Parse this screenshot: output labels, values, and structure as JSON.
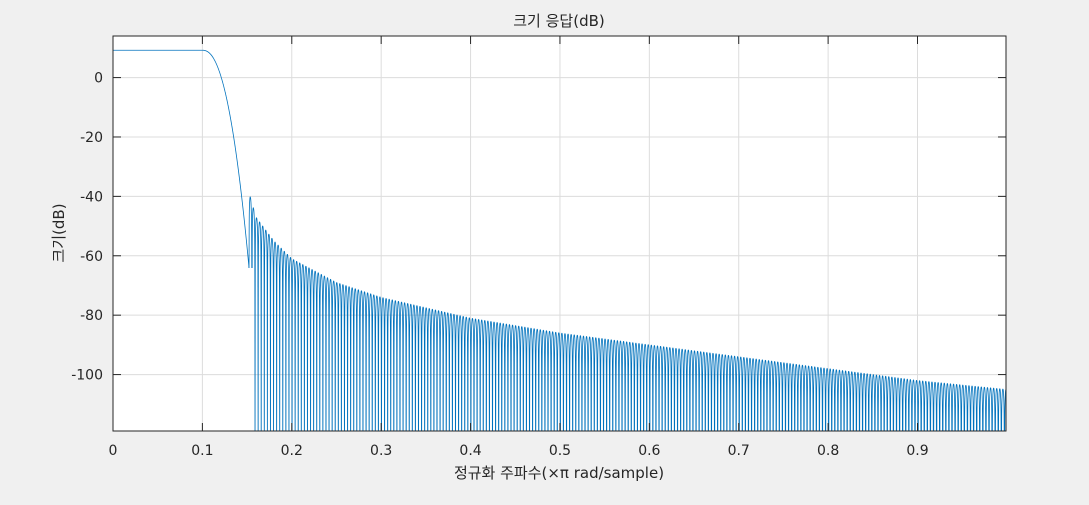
{
  "chart_data": {
    "type": "line",
    "title": "크기 응답(dB)",
    "xlabel": "정규화 주파수(×π rad/sample)",
    "ylabel": "크기(dB)",
    "xlim": [
      0,
      0.999
    ],
    "ylim": [
      -119,
      14
    ],
    "xticks": [
      0,
      0.1,
      0.2,
      0.3,
      0.4,
      0.5,
      0.6,
      0.7,
      0.8,
      0.9
    ],
    "yticks": [
      0,
      -20,
      -40,
      -60,
      -80,
      -100
    ],
    "grid": true,
    "series": [
      {
        "color": "#0072bd",
        "passband_gain_db": 9.2,
        "passband_edge": 0.1,
        "stopband_edge": 0.15,
        "stopband_envelope": {
          "x": [
            0.152,
            0.16,
            0.18,
            0.2,
            0.25,
            0.3,
            0.4,
            0.5,
            0.6,
            0.7,
            0.8,
            0.9,
            0.999
          ],
          "y": [
            -38.5,
            -47,
            -55,
            -61,
            -69,
            -74,
            -81,
            -86,
            -90,
            -94,
            -98,
            -102,
            -105
          ]
        }
      }
    ]
  }
}
